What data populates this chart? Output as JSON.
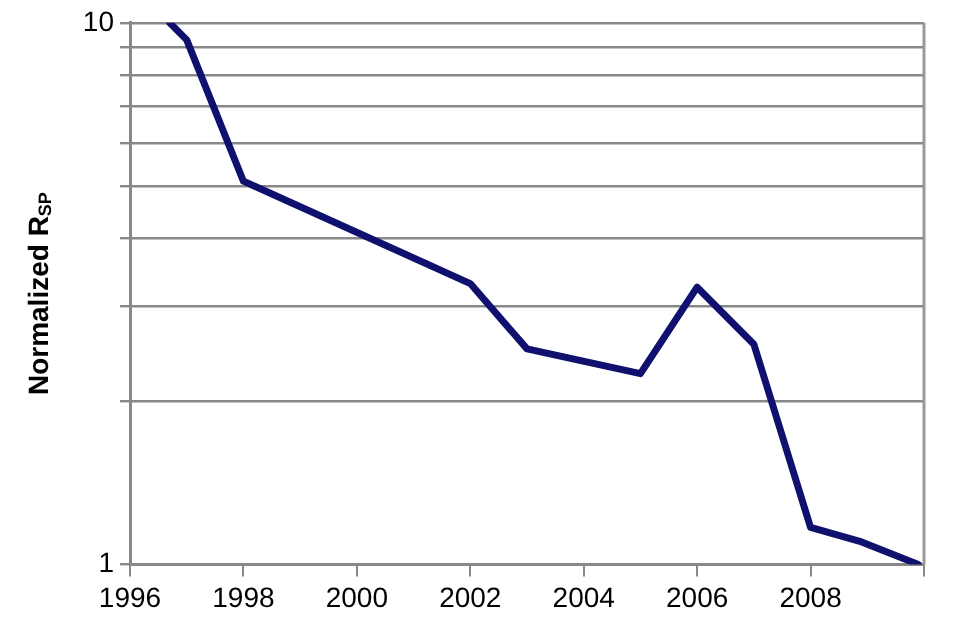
{
  "chart_data": {
    "type": "line",
    "ylabel": "Normalized R$_{SP}$",
    "x": [
      1996.7,
      1997,
      1998,
      2002,
      2003,
      2005,
      2006,
      2007,
      2008,
      2008.9,
      2009.9
    ],
    "series": [
      {
        "color": "#10106e",
        "values": [
          10,
          9.3,
          5.1,
          3.3,
          2.5,
          2.25,
          3.25,
          2.55,
          1.17,
          1.1,
          1.0
        ]
      }
    ],
    "xlim": [
      1996,
      2010
    ],
    "xticks": [
      1996,
      1998,
      2000,
      2002,
      2004,
      2006,
      2008,
      {
        "value": 2010,
        "label": null
      }
    ],
    "ylim": [
      1,
      10
    ],
    "yticks": [
      1,
      {
        "value": 2,
        "label": null
      },
      {
        "value": 3,
        "label": null
      },
      {
        "value": 4,
        "label": null
      },
      {
        "value": 5,
        "label": null
      },
      {
        "value": 6,
        "label": null
      },
      {
        "value": 7,
        "label": null
      },
      {
        "value": 8,
        "label": null
      },
      {
        "value": 9,
        "label": null
      },
      10
    ],
    "log": "y",
    "grid": "y",
    "legend": false,
    "marker": "none",
    "line_style": "solid"
  }
}
